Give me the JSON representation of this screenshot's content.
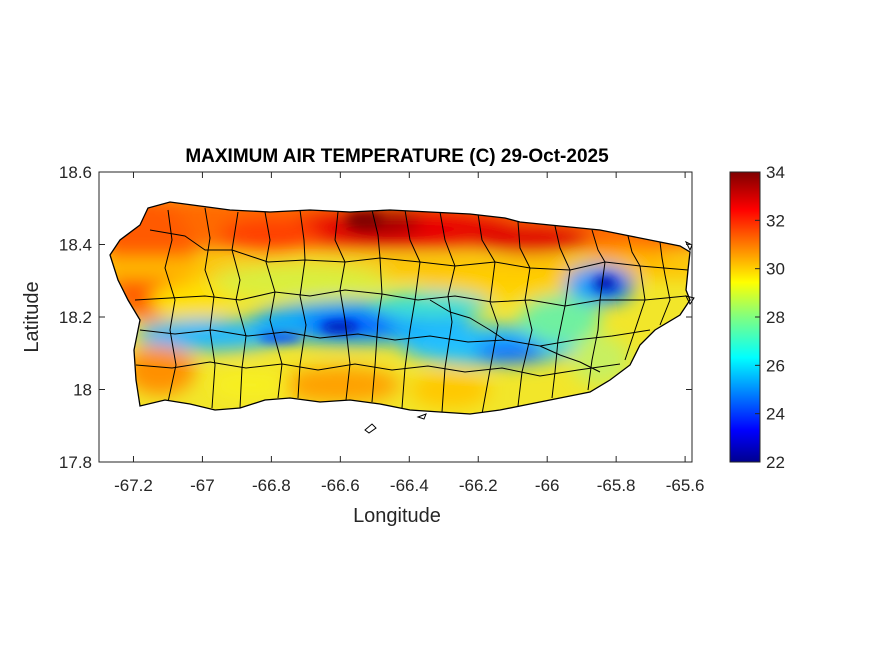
{
  "map": {
    "title": "MAXIMUM AIR TEMPERATURE (C) 29-Oct-2025",
    "xlabel": "Longitude",
    "ylabel": "Latitude",
    "xlim": [
      -67.3,
      -65.58
    ],
    "ylim": [
      17.8,
      18.6
    ],
    "xticks": [
      -67.2,
      -67,
      -66.8,
      -66.6,
      -66.4,
      -66.2,
      -66,
      -65.8,
      -65.6
    ],
    "yticks": [
      17.8,
      18,
      18.2,
      18.4,
      18.6
    ],
    "colorbar": {
      "min": 22,
      "max": 34,
      "ticks": [
        22,
        24,
        26,
        28,
        30,
        32,
        34
      ],
      "colormap": "jet"
    },
    "boundary_color": "#000000"
  }
}
